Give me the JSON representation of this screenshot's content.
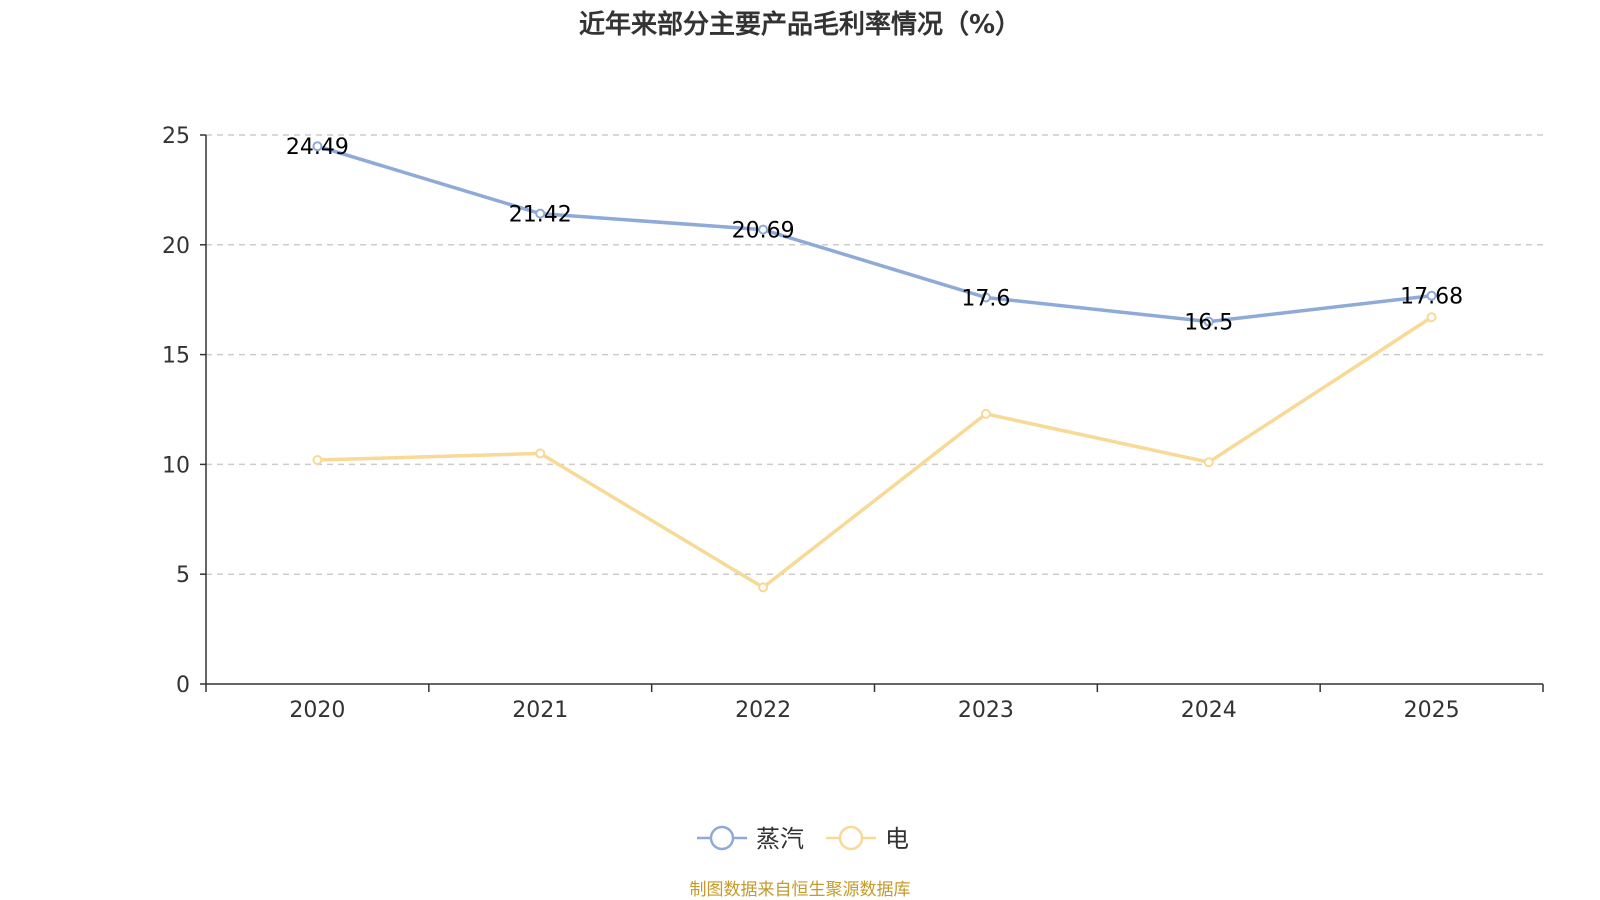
{
  "chart_data": {
    "type": "line",
    "title": "近年来部分主要产品毛利率情况（%）",
    "categories": [
      "2020",
      "2021",
      "2022",
      "2023",
      "2024",
      "2025"
    ],
    "series": [
      {
        "name": "蒸汽",
        "color": "#8eaad8",
        "values": [
          24.49,
          21.42,
          20.69,
          17.6,
          16.5,
          17.68
        ],
        "value_labels": [
          "24.49",
          "21.42",
          "20.69",
          "17.6",
          "16.5",
          "17.68"
        ],
        "show_labels": true
      },
      {
        "name": "电",
        "color": "#f8d996",
        "values": [
          10.2,
          10.5,
          4.4,
          12.3,
          10.1,
          16.7
        ],
        "show_labels": false
      }
    ],
    "ylim": [
      0,
      25
    ],
    "yticks": [
      0,
      5,
      10,
      15,
      20,
      25
    ],
    "ytick_labels": [
      "0",
      "5",
      "10",
      "15",
      "20",
      "25"
    ],
    "grid": true,
    "legend_position": "bottom-center",
    "xlabel": "",
    "ylabel": ""
  },
  "source": {
    "text": "制图数据来自恒生聚源数据库",
    "color": "#c49a2a"
  }
}
